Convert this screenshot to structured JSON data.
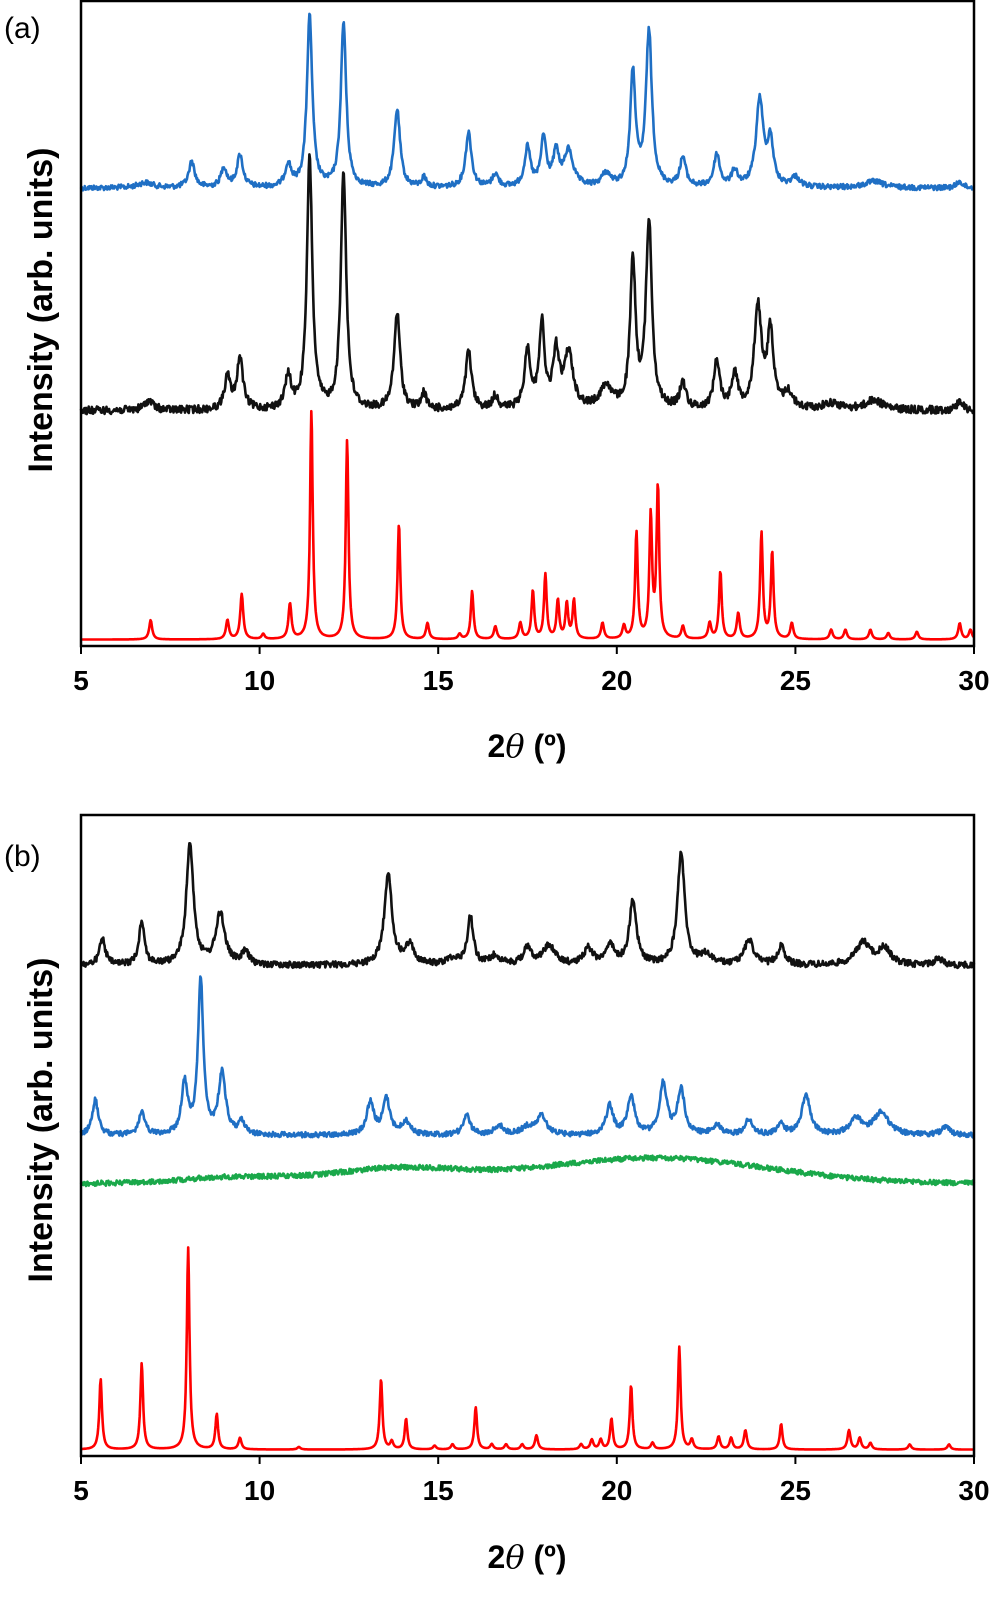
{
  "chart_data": [
    {
      "panel_label": "(a)",
      "type": "line",
      "xlabel_prefix": "2",
      "xlabel_theta": "θ",
      "xlabel_unit": " (º)",
      "ylabel": "Intensity (arb. units)",
      "xlim": [
        5,
        30
      ],
      "xticks": [
        5,
        10,
        15,
        20,
        25,
        30
      ],
      "yaxis_ticks": false,
      "series": [
        {
          "color": "#1f6fc4",
          "baseline": 0.29,
          "noise": 0.004,
          "peaks": [
            [
              6.8,
              0.008,
              0.25
            ],
            [
              8.1,
              0.04,
              0.1
            ],
            [
              9.0,
              0.03,
              0.1
            ],
            [
              9.45,
              0.05,
              0.1
            ],
            [
              10.8,
              0.035,
              0.1
            ],
            [
              11.4,
              0.265,
              0.09
            ],
            [
              12.35,
              0.255,
              0.09
            ],
            [
              13.85,
              0.12,
              0.1
            ],
            [
              14.6,
              0.015,
              0.08
            ],
            [
              15.85,
              0.085,
              0.1
            ],
            [
              16.6,
              0.02,
              0.1
            ],
            [
              17.5,
              0.06,
              0.1
            ],
            [
              17.95,
              0.075,
              0.09
            ],
            [
              18.3,
              0.05,
              0.1
            ],
            [
              18.65,
              0.055,
              0.15
            ],
            [
              19.7,
              0.02,
              0.15
            ],
            [
              20.45,
              0.175,
              0.09
            ],
            [
              20.9,
              0.24,
              0.1
            ],
            [
              21.85,
              0.045,
              0.1
            ],
            [
              22.8,
              0.05,
              0.1
            ],
            [
              23.3,
              0.025,
              0.1
            ],
            [
              24.0,
              0.135,
              0.12
            ],
            [
              24.3,
              0.07,
              0.1
            ],
            [
              25.0,
              0.015,
              0.15
            ],
            [
              27.2,
              0.01,
              0.3
            ],
            [
              29.6,
              0.01,
              0.1
            ]
          ]
        },
        {
          "color": "#111111",
          "baseline": 0.635,
          "noise": 0.006,
          "peaks": [
            [
              6.9,
              0.015,
              0.15
            ],
            [
              9.1,
              0.05,
              0.1
            ],
            [
              9.45,
              0.08,
              0.1
            ],
            [
              10.8,
              0.05,
              0.1
            ],
            [
              11.4,
              0.39,
              0.09
            ],
            [
              12.35,
              0.37,
              0.09
            ],
            [
              13.85,
              0.15,
              0.1
            ],
            [
              14.6,
              0.025,
              0.08
            ],
            [
              15.85,
              0.09,
              0.1
            ],
            [
              16.6,
              0.02,
              0.1
            ],
            [
              17.5,
              0.09,
              0.1
            ],
            [
              17.9,
              0.13,
              0.09
            ],
            [
              18.3,
              0.085,
              0.1
            ],
            [
              18.65,
              0.085,
              0.15
            ],
            [
              19.7,
              0.035,
              0.2
            ],
            [
              20.45,
              0.225,
              0.09
            ],
            [
              20.9,
              0.29,
              0.1
            ],
            [
              21.85,
              0.04,
              0.1
            ],
            [
              22.8,
              0.075,
              0.1
            ],
            [
              23.3,
              0.055,
              0.1
            ],
            [
              23.95,
              0.16,
              0.12
            ],
            [
              24.3,
              0.12,
              0.1
            ],
            [
              24.8,
              0.025,
              0.15
            ],
            [
              26.0,
              0.01,
              0.3
            ],
            [
              27.2,
              0.015,
              0.3
            ],
            [
              29.6,
              0.015,
              0.1
            ]
          ]
        },
        {
          "color": "#ff0000",
          "baseline": 0.99,
          "noise": 0,
          "peaks": [
            [
              6.95,
              0.03,
              0.05
            ],
            [
              9.1,
              0.03,
              0.05
            ],
            [
              9.5,
              0.07,
              0.05
            ],
            [
              10.1,
              0.008,
              0.05
            ],
            [
              10.85,
              0.055,
              0.05
            ],
            [
              11.45,
              0.355,
              0.045
            ],
            [
              12.45,
              0.31,
              0.045
            ],
            [
              13.9,
              0.18,
              0.045
            ],
            [
              14.7,
              0.025,
              0.05
            ],
            [
              15.6,
              0.008,
              0.05
            ],
            [
              15.95,
              0.075,
              0.045
            ],
            [
              16.6,
              0.02,
              0.05
            ],
            [
              17.3,
              0.025,
              0.05
            ],
            [
              17.65,
              0.075,
              0.045
            ],
            [
              18.0,
              0.1,
              0.045
            ],
            [
              18.35,
              0.06,
              0.045
            ],
            [
              18.6,
              0.055,
              0.045
            ],
            [
              18.8,
              0.06,
              0.045
            ],
            [
              19.6,
              0.025,
              0.05
            ],
            [
              20.2,
              0.02,
              0.05
            ],
            [
              20.55,
              0.165,
              0.045
            ],
            [
              20.95,
              0.19,
              0.045
            ],
            [
              21.15,
              0.235,
              0.045
            ],
            [
              21.85,
              0.02,
              0.05
            ],
            [
              22.6,
              0.025,
              0.05
            ],
            [
              22.9,
              0.105,
              0.045
            ],
            [
              23.4,
              0.04,
              0.05
            ],
            [
              24.05,
              0.165,
              0.045
            ],
            [
              24.35,
              0.135,
              0.045
            ],
            [
              24.9,
              0.025,
              0.05
            ],
            [
              26.0,
              0.015,
              0.05
            ],
            [
              26.4,
              0.015,
              0.05
            ],
            [
              27.1,
              0.015,
              0.05
            ],
            [
              27.6,
              0.01,
              0.05
            ],
            [
              28.4,
              0.012,
              0.05
            ],
            [
              29.6,
              0.025,
              0.05
            ],
            [
              29.9,
              0.015,
              0.05
            ]
          ]
        }
      ]
    },
    {
      "panel_label": "(b)",
      "type": "line",
      "xlabel_prefix": "2",
      "xlabel_theta": "θ",
      "xlabel_unit": " (º)",
      "ylabel": "Intensity (arb. units)",
      "xlim": [
        5,
        30
      ],
      "xticks": [
        5,
        10,
        15,
        20,
        25,
        30
      ],
      "yaxis_ticks": false,
      "series": [
        {
          "color": "#111111",
          "baseline": 0.235,
          "noise": 0.005,
          "peaks": [
            [
              5.6,
              0.04,
              0.1
            ],
            [
              6.7,
              0.07,
              0.09
            ],
            [
              8.05,
              0.19,
              0.12
            ],
            [
              8.9,
              0.08,
              0.15
            ],
            [
              9.6,
              0.02,
              0.12
            ],
            [
              13.6,
              0.14,
              0.13
            ],
            [
              14.2,
              0.03,
              0.15
            ],
            [
              15.4,
              0.01,
              0.2
            ],
            [
              15.9,
              0.075,
              0.1
            ],
            [
              16.6,
              0.015,
              0.15
            ],
            [
              17.5,
              0.025,
              0.15
            ],
            [
              18.1,
              0.03,
              0.2
            ],
            [
              19.2,
              0.025,
              0.15
            ],
            [
              19.8,
              0.03,
              0.15
            ],
            [
              20.45,
              0.1,
              0.12
            ],
            [
              21.8,
              0.175,
              0.12
            ],
            [
              22.5,
              0.015,
              0.2
            ],
            [
              23.7,
              0.04,
              0.15
            ],
            [
              24.6,
              0.03,
              0.12
            ],
            [
              26.9,
              0.035,
              0.25
            ],
            [
              27.5,
              0.025,
              0.2
            ],
            [
              29.0,
              0.01,
              0.15
            ]
          ]
        },
        {
          "color": "#1f6fc4",
          "baseline": 0.5,
          "noise": 0.004,
          "peaks": [
            [
              5.4,
              0.055,
              0.1
            ],
            [
              6.7,
              0.035,
              0.1
            ],
            [
              7.9,
              0.08,
              0.1
            ],
            [
              8.35,
              0.24,
              0.09
            ],
            [
              8.95,
              0.095,
              0.12
            ],
            [
              9.5,
              0.02,
              0.1
            ],
            [
              13.1,
              0.05,
              0.12
            ],
            [
              13.55,
              0.055,
              0.12
            ],
            [
              14.1,
              0.02,
              0.15
            ],
            [
              15.8,
              0.03,
              0.12
            ],
            [
              16.7,
              0.015,
              0.15
            ],
            [
              17.5,
              0.012,
              0.2
            ],
            [
              17.9,
              0.03,
              0.15
            ],
            [
              19.8,
              0.045,
              0.12
            ],
            [
              20.4,
              0.06,
              0.12
            ],
            [
              21.3,
              0.08,
              0.12
            ],
            [
              21.8,
              0.07,
              0.12
            ],
            [
              22.8,
              0.015,
              0.15
            ],
            [
              23.7,
              0.025,
              0.12
            ],
            [
              24.6,
              0.015,
              0.12
            ],
            [
              25.3,
              0.06,
              0.15
            ],
            [
              26.7,
              0.025,
              0.2
            ],
            [
              27.4,
              0.035,
              0.25
            ],
            [
              29.2,
              0.012,
              0.15
            ]
          ]
        },
        {
          "color": "#1aa84a",
          "baseline": 0.575,
          "noise": 0.004,
          "broad": [
            [
              9.3,
              0.01,
              1.5
            ],
            [
              13.8,
              0.022,
              1.8
            ],
            [
              21.0,
              0.04,
              3.2
            ]
          ]
        },
        {
          "color": "#ff0000",
          "baseline": 0.99,
          "noise": 0,
          "peaks": [
            [
              5.55,
              0.11,
              0.045
            ],
            [
              6.7,
              0.135,
              0.045
            ],
            [
              8.0,
              0.315,
              0.045
            ],
            [
              8.8,
              0.055,
              0.045
            ],
            [
              9.45,
              0.018,
              0.05
            ],
            [
              11.1,
              0.004,
              0.05
            ],
            [
              13.4,
              0.11,
              0.045
            ],
            [
              13.7,
              0.012,
              0.05
            ],
            [
              14.1,
              0.048,
              0.045
            ],
            [
              14.9,
              0.006,
              0.05
            ],
            [
              15.4,
              0.008,
              0.05
            ],
            [
              16.05,
              0.066,
              0.045
            ],
            [
              16.5,
              0.008,
              0.05
            ],
            [
              16.9,
              0.008,
              0.05
            ],
            [
              17.35,
              0.008,
              0.05
            ],
            [
              17.75,
              0.022,
              0.05
            ],
            [
              19.0,
              0.008,
              0.05
            ],
            [
              19.3,
              0.015,
              0.05
            ],
            [
              19.55,
              0.015,
              0.05
            ],
            [
              19.85,
              0.048,
              0.045
            ],
            [
              20.4,
              0.1,
              0.045
            ],
            [
              21.0,
              0.01,
              0.05
            ],
            [
              21.75,
              0.16,
              0.045
            ],
            [
              22.1,
              0.015,
              0.05
            ],
            [
              22.85,
              0.02,
              0.05
            ],
            [
              23.2,
              0.018,
              0.05
            ],
            [
              23.6,
              0.03,
              0.05
            ],
            [
              24.6,
              0.04,
              0.045
            ],
            [
              26.5,
              0.03,
              0.05
            ],
            [
              26.8,
              0.018,
              0.05
            ],
            [
              27.1,
              0.01,
              0.05
            ],
            [
              28.2,
              0.008,
              0.05
            ],
            [
              29.3,
              0.008,
              0.05
            ]
          ]
        }
      ]
    }
  ]
}
